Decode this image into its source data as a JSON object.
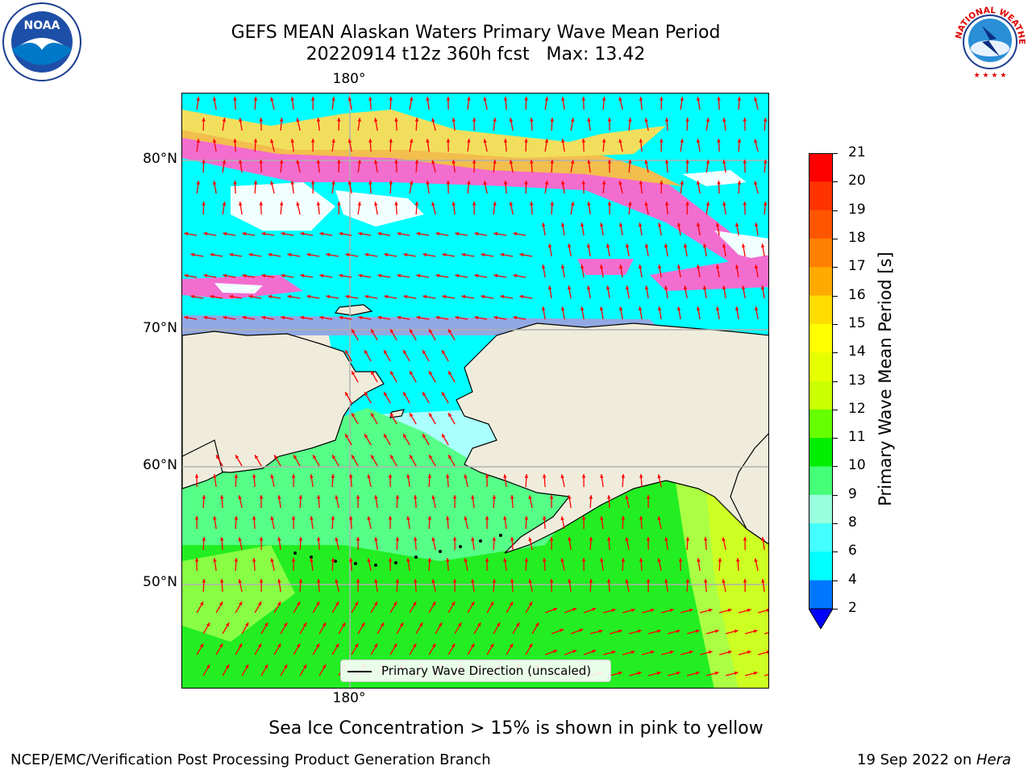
{
  "title": {
    "line1": "GEFS MEAN Alaskan Waters Primary Wave Mean Period",
    "line2": "20220914 t12z 360h fcst   Max: 13.42"
  },
  "logos": {
    "left": {
      "icon": "noaa-logo",
      "text": "NOAA"
    },
    "right": {
      "icon": "nws-logo",
      "text": "NATIONAL WEATHER SERVICE"
    }
  },
  "map": {
    "lat_labels": [
      "80°N",
      "70°N",
      "60°N",
      "50°N"
    ],
    "lon_label_top": "180°",
    "lon_label_bottom": "180°",
    "legend_label": "Primary Wave Direction (unscaled)",
    "colors": {
      "land": "#f0ecdc",
      "ice": "#ff66cc",
      "arrow": "#ff0000",
      "grid": "#b0b0b0"
    }
  },
  "colorbar": {
    "label": "Primary Wave Mean Period [s]",
    "ticks": [
      "21",
      "20",
      "19",
      "18",
      "17",
      "16",
      "15",
      "14",
      "13",
      "12",
      "11",
      "10",
      "9",
      "8",
      "6",
      "4",
      "2"
    ],
    "colors": [
      "#ff0000",
      "#ff3300",
      "#ff5500",
      "#ff8000",
      "#ffaa00",
      "#ffdd00",
      "#ffff00",
      "#e6ff00",
      "#ccff00",
      "#66ff00",
      "#00ee00",
      "#44ff77",
      "#99ffdd",
      "#44ffff",
      "#00ffff",
      "#0077ff",
      "#0000ff"
    ]
  },
  "footer": {
    "ice_note": "Sea Ice Concentration > 15% is shown in pink to yellow",
    "credit": "NCEP/EMC/Verification Post Processing Product Generation Branch",
    "date": "19 Sep 2022 on ",
    "host": "Hera"
  }
}
